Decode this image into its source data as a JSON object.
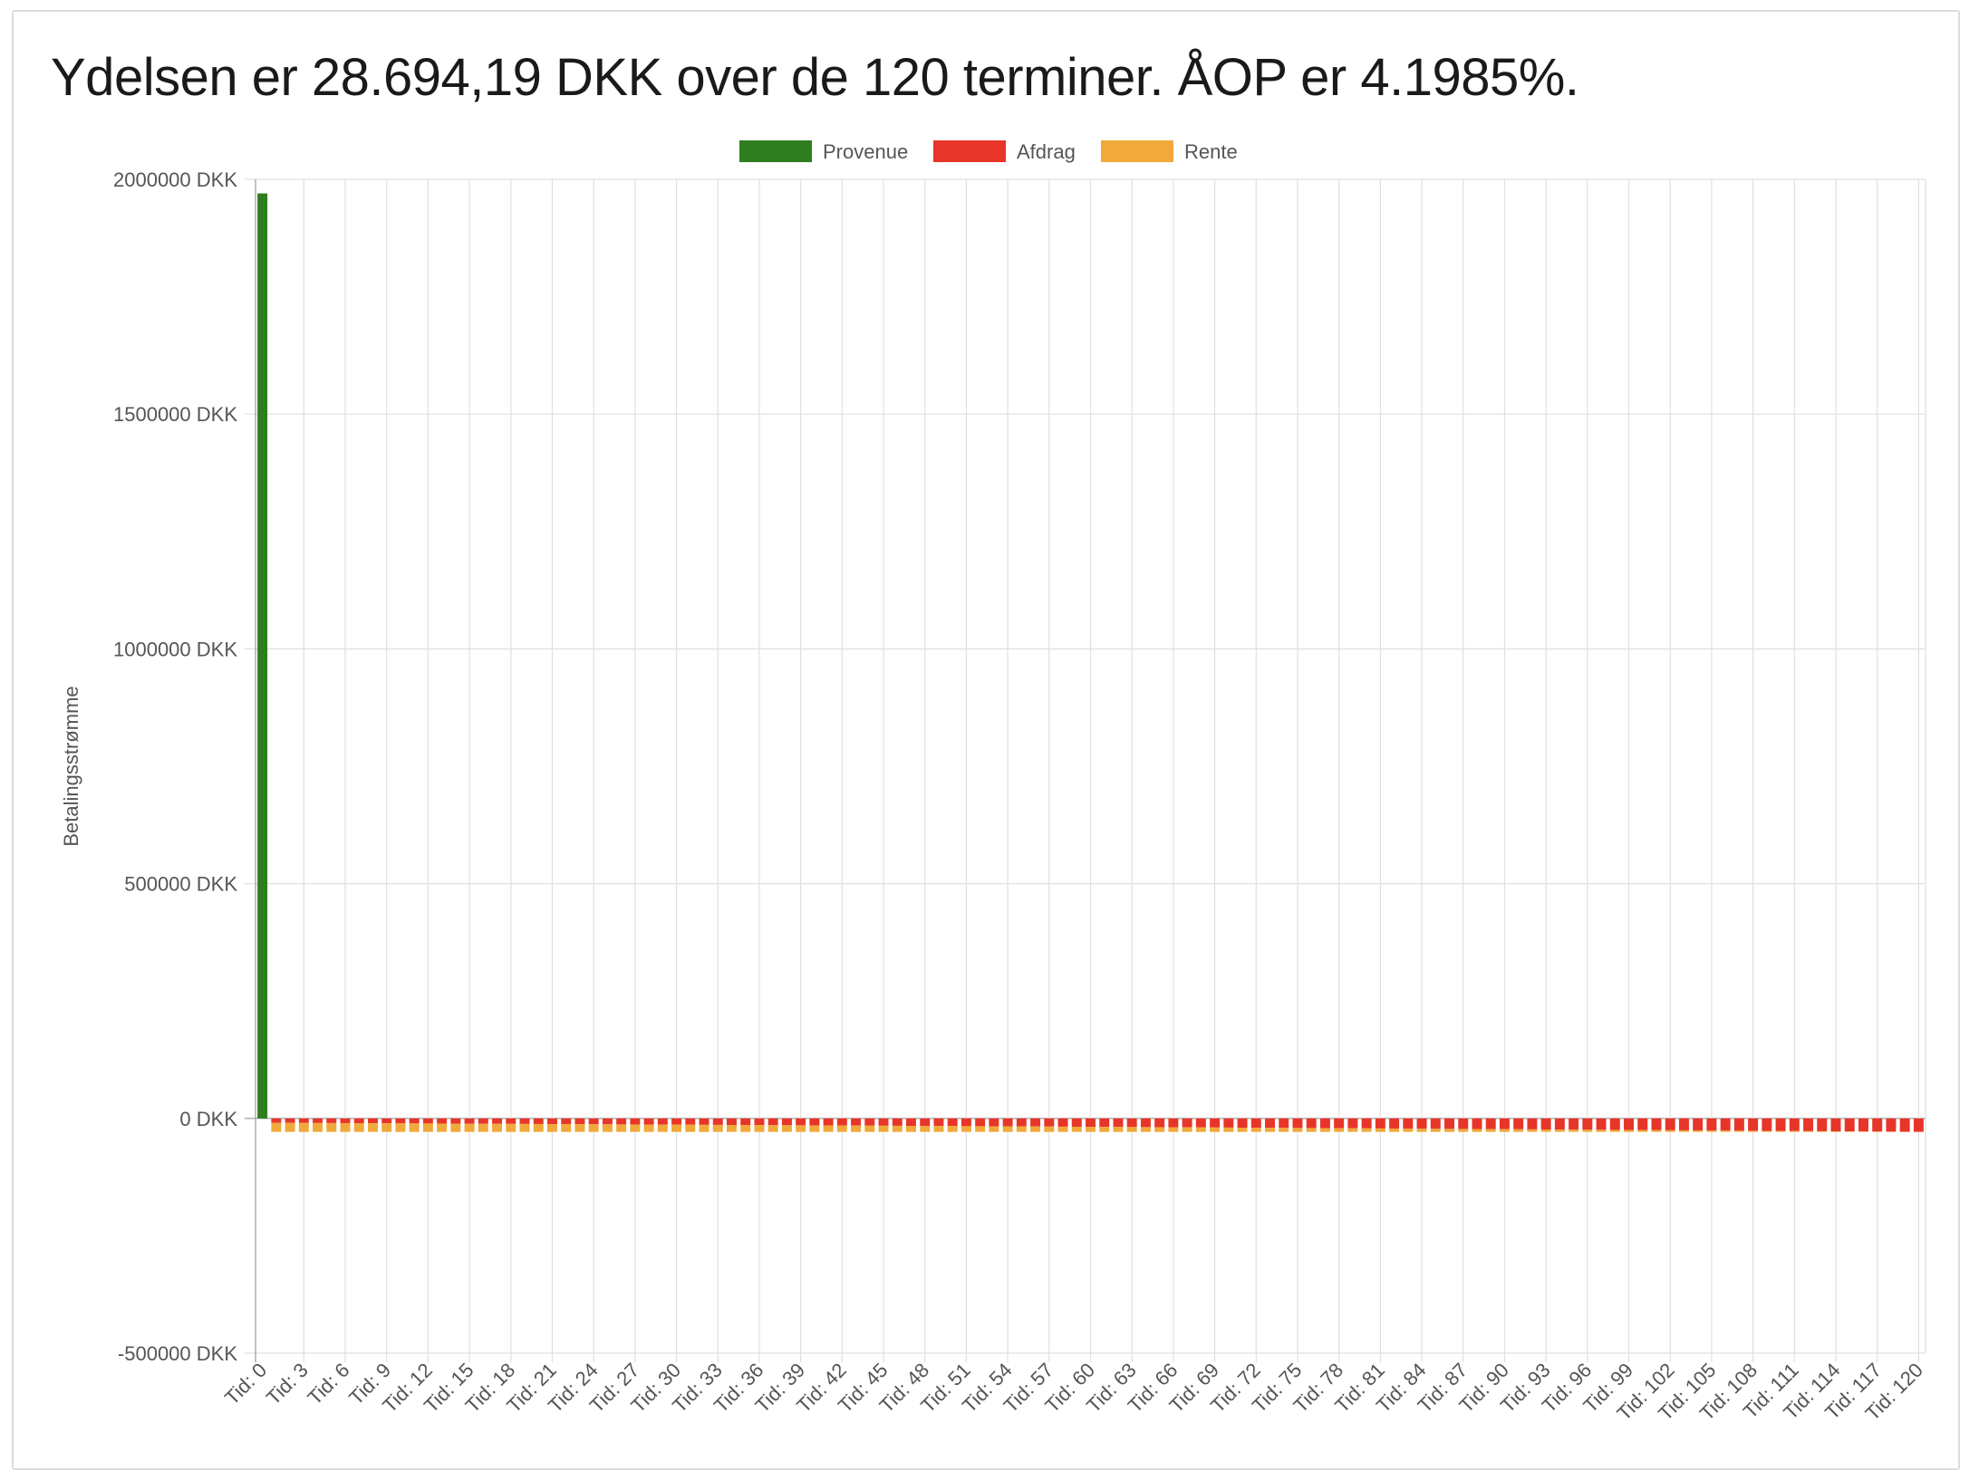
{
  "headline": "Ydelsen er 28.694,19 DKK over de 120 terminer. ÅOP er 4.1985%.",
  "chart_data": {
    "type": "bar",
    "stacked": true,
    "grid": true,
    "legend_position": "top",
    "ylabel": "Betalingsstrømme",
    "ylim": [
      -500000,
      2000000
    ],
    "y_ticks": [
      2000000,
      1500000,
      1000000,
      500000,
      0,
      -500000
    ],
    "y_tick_labels": [
      "2000000 DKK",
      "1500000 DKK",
      "1000000 DKK",
      "500000 DKK",
      "0 DKK",
      "-500000 DKK"
    ],
    "category_prefix": "Tid: ",
    "category_count": 121,
    "x_label_every": 3,
    "colors": {
      "Provenue": "#2f7d1f",
      "Afdrag": "#e8352a",
      "Rente": "#f0a93a"
    },
    "series": [
      {
        "name": "Provenue",
        "values_note": "only period 0 is non-zero",
        "values": {
          "0": 1970000
        }
      },
      {
        "name": "Afdrag",
        "model": "annuity",
        "first_value": -9300,
        "last_value": -28600
      },
      {
        "name": "Rente",
        "model": "annuity",
        "first_value": -19400,
        "last_value": -100
      }
    ],
    "payment_per_period": -28694.19
  }
}
